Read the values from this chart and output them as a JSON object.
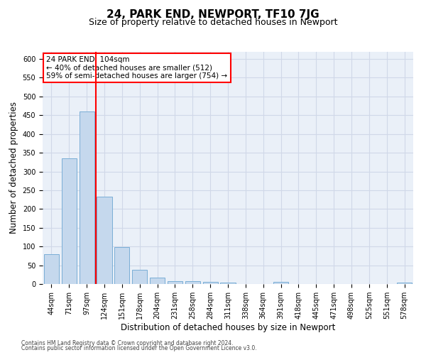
{
  "title": "24, PARK END, NEWPORT, TF10 7JG",
  "subtitle": "Size of property relative to detached houses in Newport",
  "xlabel": "Distribution of detached houses by size in Newport",
  "ylabel": "Number of detached properties",
  "categories": [
    "44sqm",
    "71sqm",
    "97sqm",
    "124sqm",
    "151sqm",
    "178sqm",
    "204sqm",
    "231sqm",
    "258sqm",
    "284sqm",
    "311sqm",
    "338sqm",
    "364sqm",
    "391sqm",
    "418sqm",
    "445sqm",
    "471sqm",
    "498sqm",
    "525sqm",
    "551sqm",
    "578sqm"
  ],
  "values": [
    80,
    335,
    460,
    232,
    98,
    38,
    17,
    8,
    8,
    5,
    4,
    0,
    0,
    5,
    0,
    0,
    0,
    0,
    0,
    0,
    4
  ],
  "bar_color": "#c5d8ed",
  "bar_edge_color": "#7aaed6",
  "red_line_x": 2.5,
  "annotation_title": "24 PARK END: 104sqm",
  "annotation_line1": "← 40% of detached houses are smaller (512)",
  "annotation_line2": "59% of semi-detached houses are larger (754) →",
  "annotation_box_color": "white",
  "annotation_box_edge_color": "red",
  "grid_color": "#d0d8e8",
  "background_color": "#eaf0f8",
  "ylim": [
    0,
    620
  ],
  "yticks": [
    0,
    50,
    100,
    150,
    200,
    250,
    300,
    350,
    400,
    450,
    500,
    550,
    600
  ],
  "footer_line1": "Contains HM Land Registry data © Crown copyright and database right 2024.",
  "footer_line2": "Contains public sector information licensed under the Open Government Licence v3.0.",
  "title_fontsize": 11,
  "subtitle_fontsize": 9,
  "tick_fontsize": 7,
  "ylabel_fontsize": 8.5,
  "xlabel_fontsize": 8.5,
  "annotation_fontsize": 7.5,
  "footer_fontsize": 5.5
}
